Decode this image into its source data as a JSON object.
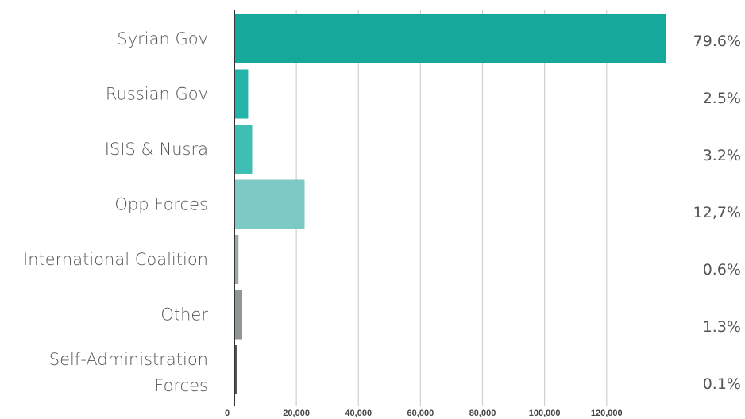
{
  "chart_data": {
    "type": "bar",
    "orientation": "horizontal",
    "categories": [
      [
        "Syrian Gov"
      ],
      [
        "Russian Gov"
      ],
      [
        "ISIS & Nusra"
      ],
      [
        "Opp Forces"
      ],
      [
        "International Coalition"
      ],
      [
        "Other"
      ],
      [
        "Self-Administration",
        "Forces"
      ]
    ],
    "values": [
      139000,
      4200,
      5500,
      22400,
      1100,
      2300,
      200
    ],
    "percent_labels": [
      "79.6%",
      "2.5%",
      "3.2%",
      "12,7%",
      "0.6%",
      "1.3%",
      "0.1%"
    ],
    "bar_colors": [
      "#17a89c",
      "#23b3a8",
      "#3fbfb3",
      "#7dcac4",
      "#9aa8a6",
      "#8e9695",
      "#555555"
    ],
    "x_ticks": [
      0,
      20000,
      40000,
      60000,
      80000,
      100000,
      120000
    ],
    "x_tick_labels": [
      "0",
      "20,000",
      "40,000",
      "60,000",
      "80,000",
      "100,000",
      "120,000"
    ],
    "xlim": [
      0,
      139000
    ],
    "grid": true,
    "title": "",
    "xlabel": "",
    "ylabel": ""
  }
}
